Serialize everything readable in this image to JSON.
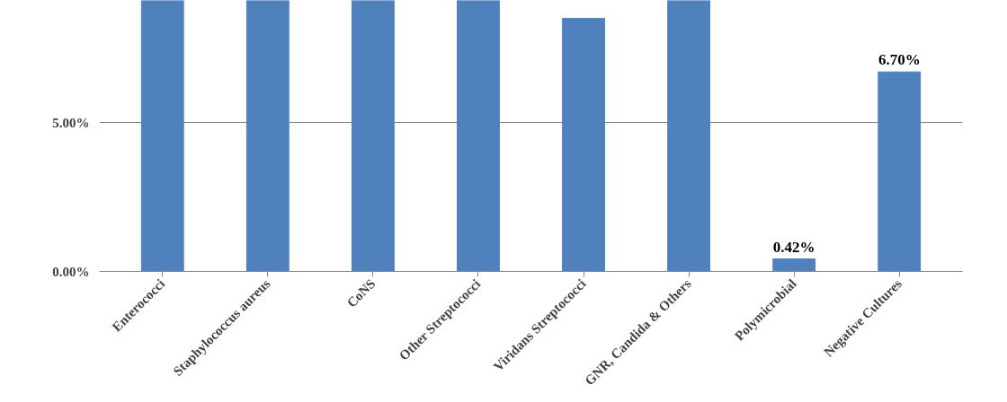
{
  "chart_data": {
    "type": "bar",
    "categories": [
      "Enterococci",
      "Staphylococcus aureus",
      "CoNS",
      "Other Streptococci",
      "Viridans Streptococci",
      "GNR, Candida & Others",
      "Polymicrobial",
      "Negative Cultures"
    ],
    "values": [
      9.1,
      9.1,
      9.1,
      9.1,
      8.5,
      9.1,
      0.42,
      6.7
    ],
    "value_labels": [
      null,
      null,
      null,
      null,
      null,
      null,
      "0.42%",
      "6.70%"
    ],
    "color": "#4f81bd",
    "ylim": [
      0,
      9.1
    ],
    "yticks": [
      {
        "value": 0,
        "label": "0.00%"
      },
      {
        "value": 5,
        "label": "5.00%"
      }
    ],
    "grid": "y"
  }
}
